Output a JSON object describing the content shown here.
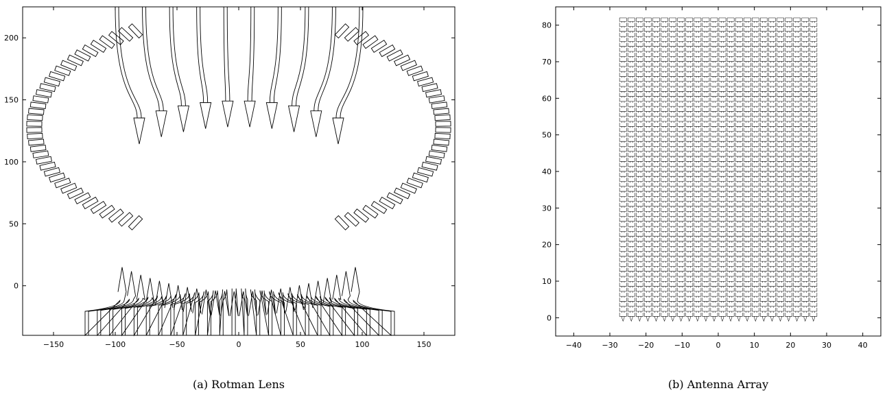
{
  "figures": [
    {
      "caption": "(a) Rotman Lens",
      "xticks": [
        "−150",
        "−100",
        "−50",
        "0",
        "50",
        "100",
        "150"
      ],
      "yticks": [
        "0",
        "50",
        "100",
        "150",
        "200"
      ]
    },
    {
      "caption": "(b) Antenna Array",
      "xticks": [
        "−40",
        "−30",
        "−20",
        "−10",
        "0",
        "10",
        "20",
        "30",
        "40"
      ],
      "yticks": [
        "0",
        "10",
        "20",
        "30",
        "40",
        "50",
        "60",
        "70",
        "80"
      ]
    }
  ],
  "chart_data": [
    {
      "type": "diagram",
      "title": "(a) Rotman Lens",
      "xlim": [
        -175,
        175
      ],
      "ylim": [
        -40,
        225
      ],
      "xticks": [
        -150,
        -100,
        -50,
        0,
        50,
        100,
        150
      ],
      "yticks": [
        0,
        50,
        100,
        150,
        200
      ],
      "beam_ports": 26,
      "array_ports": 10,
      "dummy_ports_per_side": 38,
      "grid": false
    },
    {
      "type": "diagram",
      "title": "(b) Antenna Array",
      "xlim": [
        -45,
        45
      ],
      "ylim": [
        -5,
        85
      ],
      "xticks": [
        -40,
        -30,
        -20,
        -10,
        0,
        10,
        20,
        30,
        40
      ],
      "yticks": [
        0,
        10,
        20,
        30,
        40,
        50,
        60,
        70,
        80
      ],
      "columns": 24,
      "column_x_range": [
        -27.5,
        27.5
      ],
      "element_y_range": [
        0,
        82
      ],
      "grid": false
    }
  ]
}
